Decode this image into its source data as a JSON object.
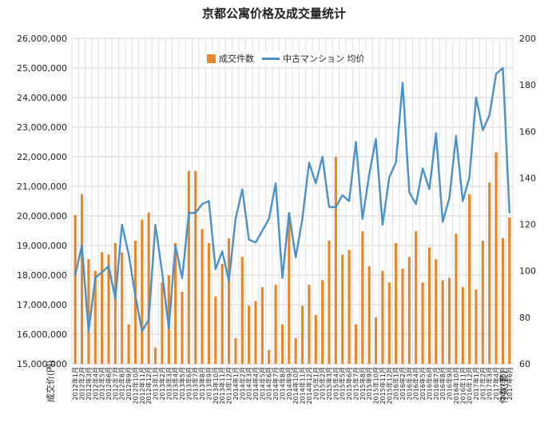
{
  "title": "京都公寓价格及成交量统计",
  "legend": {
    "bar_label": "成交件数",
    "line_label": "中古マンション 均价"
  },
  "colors": {
    "bars": "#e8862a",
    "line": "#4a90c9",
    "grid": "#d0d0d0"
  },
  "chart_data": {
    "type": "bar",
    "title": "京都公寓价格及成交量统计",
    "ylabel": "成交价(円)",
    "y2label": "件数(套)",
    "legend_position": "top-center",
    "grid": true,
    "ylim": [
      15000000,
      26000000
    ],
    "y2lim": [
      60,
      200
    ],
    "y_ticks": [
      "15,000,000",
      "16,000,000",
      "17,000,000",
      "18,000,000",
      "19,000,000",
      "20,000,000",
      "21,000,000",
      "22,000,000",
      "23,000,000",
      "24,000,000",
      "25,000,000",
      "26,000,000"
    ],
    "y2_ticks": [
      "60",
      "80",
      "100",
      "120",
      "140",
      "160",
      "180",
      "200"
    ],
    "x_ticks": [
      "2012年1月",
      "2012年2月",
      "2012年3月",
      "2012年4月",
      "2012年5月",
      "2012年6月",
      "2012年7月",
      "2012年8月",
      "2012年9月",
      "2012年10月",
      "2012年11月",
      "2012年12月",
      "2013年1月",
      "2013年2月",
      "2013年3月",
      "2013年4月",
      "2013年5月",
      "2013年6月",
      "2013年7月",
      "2013年8月",
      "2013年9月",
      "2013年10月",
      "2013年11月",
      "2013年12月",
      "2014年1月",
      "2014年2月",
      "2014年3月",
      "2014年4月",
      "2014年5月",
      "2014年6月",
      "2014年7月",
      "2014年8月",
      "2014年9月",
      "2014年10月",
      "2014年11月",
      "2014年12月",
      "2015年1月",
      "2015年2月",
      "2015年3月",
      "2015年4月",
      "2015年5月",
      "2015年6月",
      "2015年7月",
      "2015年8月",
      "2015年9月",
      "2015年10月",
      "2015年11月",
      "2015年12月",
      "2016年1月",
      "2016年2月",
      "2016年3月",
      "2016年4月",
      "2016年5月",
      "2016年6月",
      "2016年7月",
      "2016年8月",
      "2016年9月",
      "2016年10月",
      "2016年11月",
      "2016年12月",
      "2017年1月",
      "2017年2月",
      "2017年3月",
      "2017年4月",
      "2017年5月",
      "2017年6月"
    ],
    "series": [
      {
        "name": "成交件数",
        "type": "bar",
        "axis": "right",
        "values": [
          124,
          133,
          105,
          100,
          108,
          107,
          112,
          108,
          77,
          113,
          122,
          125,
          67,
          95,
          98,
          112,
          91,
          143,
          143,
          118,
          112,
          89,
          103,
          114,
          71,
          106,
          85,
          87,
          93,
          66,
          94,
          77,
          125,
          71,
          85,
          94,
          81,
          96,
          113,
          149,
          107,
          109,
          77,
          117,
          102,
          80,
          100,
          95,
          112,
          101,
          106,
          117,
          95,
          110,
          105,
          96,
          97,
          116,
          93,
          133,
          92,
          113,
          138,
          151,
          114,
          123
        ]
      },
      {
        "name": "中古マンション 均价",
        "type": "line",
        "axis": "left",
        "values": [
          18000000,
          19000000,
          16100000,
          17900000,
          18100000,
          18300000,
          17200000,
          19700000,
          18700000,
          17300000,
          16100000,
          16500000,
          19700000,
          18100000,
          16200000,
          19000000,
          17900000,
          20100000,
          20100000,
          20400000,
          20500000,
          18200000,
          18800000,
          17800000,
          19900000,
          20900000,
          19200000,
          19100000,
          19500000,
          19900000,
          21100000,
          17900000,
          20100000,
          18600000,
          19900000,
          21800000,
          21100000,
          22000000,
          20300000,
          20300000,
          20700000,
          20500000,
          22500000,
          19900000,
          21400000,
          22600000,
          19700000,
          21300000,
          21800000,
          24500000,
          20800000,
          20400000,
          21600000,
          20900000,
          22800000,
          19800000,
          20600000,
          22700000,
          20500000,
          21300000,
          24000000,
          22900000,
          23400000,
          24800000,
          25000000,
          20100000
        ]
      }
    ]
  }
}
